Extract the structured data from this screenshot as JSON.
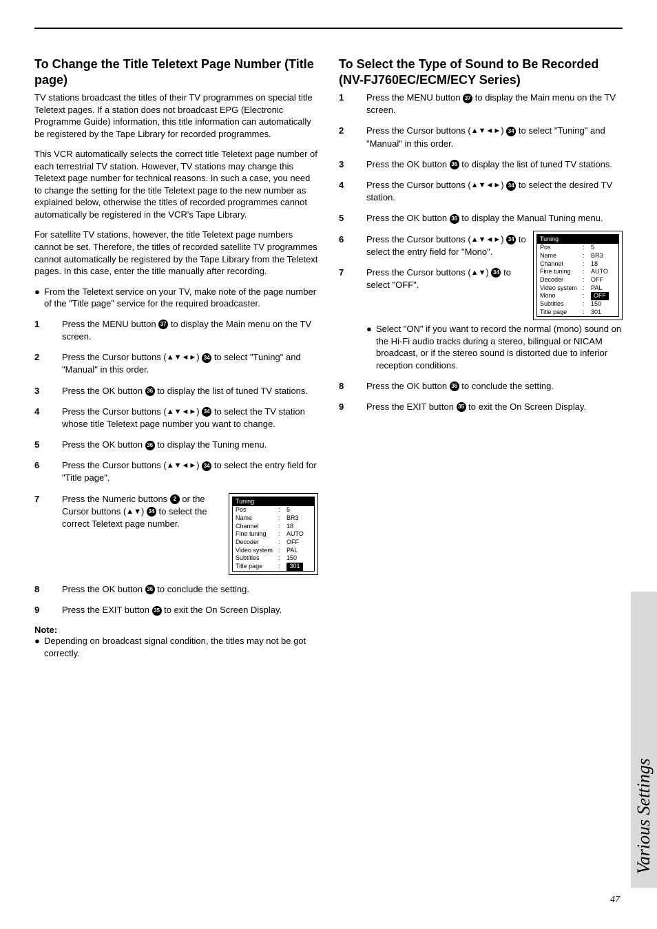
{
  "sideTab": "Various Settings",
  "pageNumber": "47",
  "left": {
    "heading": "To Change the Title Teletext Page Number (Title page)",
    "p1": "TV stations broadcast the titles of their TV programmes on special title Teletext pages. If a station does not broadcast EPG (Electronic Programme Guide) information, this title information can automatically be registered by the Tape Library for recorded programmes.",
    "p2": "This VCR automatically selects the correct title Teletext page number of each terrestrial TV station. However, TV stations may change this Teletext page number for technical reasons. In such a case, you need to change the setting for the title Teletext page to the new number as explained below, otherwise the titles of recorded programmes cannot automatically be registered in the VCR's Tape Library.",
    "p3": "For satellite TV stations, however, the title Teletext page numbers cannot be set. Therefore, the titles of recorded satellite TV programmes cannot automatically be registered by the Tape Library from the Teletext pages. In this case, enter the title manually after recording.",
    "bullet1": "From the Teletext service on your TV, make note of the page number of the \"Title page\" service for the required broadcaster.",
    "s1a": "Press the MENU button ",
    "s1b": " to display the Main menu on the TV screen.",
    "s2a": "Press the Cursor buttons (",
    "s2b": ") ",
    "s2c": " to select \"Tuning\" and \"Manual\" in this order.",
    "s3a": "Press the OK button ",
    "s3b": " to display the list of tuned TV stations.",
    "s4a": "Press the Cursor buttons (",
    "s4b": ") ",
    "s4c": " to select the TV station whose title Teletext page number you want to change.",
    "s5a": "Press the OK button ",
    "s5b": " to display the Tuning menu.",
    "s6a": "Press the Cursor buttons (",
    "s6b": ") ",
    "s6c": " to select the entry field for \"Title page\".",
    "s7a": "Press the Numeric buttons ",
    "s7b": " or the Cursor buttons (",
    "s7c": ") ",
    "s7d": " to select the correct Teletext page number.",
    "s8a": "Press the OK button ",
    "s8b": " to conclude the setting.",
    "s9a": "Press the EXIT button ",
    "s9b": " to exit the On Screen Display.",
    "noteLabel": "Note:",
    "noteText": "Depending on broadcast signal condition, the titles may not be got correctly.",
    "ref37": "37",
    "ref34": "34",
    "ref36": "36",
    "ref2": "2",
    "ref35": "35",
    "arrows4": "▲▼◄►",
    "arrows2": "▲▼"
  },
  "right": {
    "heading": "To Select the Type of Sound to Be Recorded\n(NV-FJ760EC/ECM/ECY Series)",
    "s1a": "Press the MENU button ",
    "s1b": " to display the Main menu on the TV screen.",
    "s2a": "Press the Cursor buttons (",
    "s2b": ") ",
    "s2c": " to select \"Tuning\" and \"Manual\" in this order.",
    "s3a": "Press the OK button ",
    "s3b": " to display the list of tuned TV stations.",
    "s4a": "Press the Cursor buttons (",
    "s4b": ") ",
    "s4c": " to select the desired TV station.",
    "s5a": "Press the OK button ",
    "s5b": " to display the Manual Tuning menu.",
    "s6a": "Press the Cursor buttons (",
    "s6b": ") ",
    "s6c": " to select the entry field for \"Mono\".",
    "s7a": "Press the Cursor buttons (",
    "s7b": ") ",
    "s7c": " to select \"OFF\".",
    "s7bullet": "Select \"ON\" if you want to record the normal (mono) sound on the Hi-Fi audio tracks during a stereo, bilingual or NICAM broadcast, or if the stereo sound is distorted due to inferior reception conditions.",
    "s8a": "Press the OK button ",
    "s8b": " to conclude the setting.",
    "s9a": "Press the EXIT button ",
    "s9b": " to exit the On Screen Display.",
    "ref37": "37",
    "ref34": "34",
    "ref36": "36",
    "ref35": "35",
    "arrows4": "▲▼◄►",
    "arrows2": "▲▼"
  },
  "tuningBoxLeft": {
    "title": "Tuning",
    "rows": [
      {
        "label": "Pos",
        "val": "5"
      },
      {
        "label": "Name",
        "val": "BR3"
      },
      {
        "label": "Channel",
        "val": "18"
      },
      {
        "label": "Fine tuning",
        "val": "AUTO"
      },
      {
        "label": "Decoder",
        "val": "OFF"
      },
      {
        "label": "Video system",
        "val": "PAL"
      },
      {
        "label": "Subtitles",
        "val": "150"
      },
      {
        "label": "Title page",
        "val": "301",
        "hl": true
      }
    ]
  },
  "tuningBoxRight": {
    "title": "Tuning",
    "rows": [
      {
        "label": "Pos",
        "val": "5"
      },
      {
        "label": "Name",
        "val": "BR3"
      },
      {
        "label": "Channel",
        "val": "18"
      },
      {
        "label": "Fine tuning",
        "val": "AUTO"
      },
      {
        "label": "Decoder",
        "val": "OFF"
      },
      {
        "label": "Video system",
        "val": "PAL"
      },
      {
        "label": "Mono",
        "val": "OFF",
        "hl": true
      },
      {
        "label": "Subtitles",
        "val": "150"
      },
      {
        "label": "Title page",
        "val": "301"
      }
    ]
  }
}
